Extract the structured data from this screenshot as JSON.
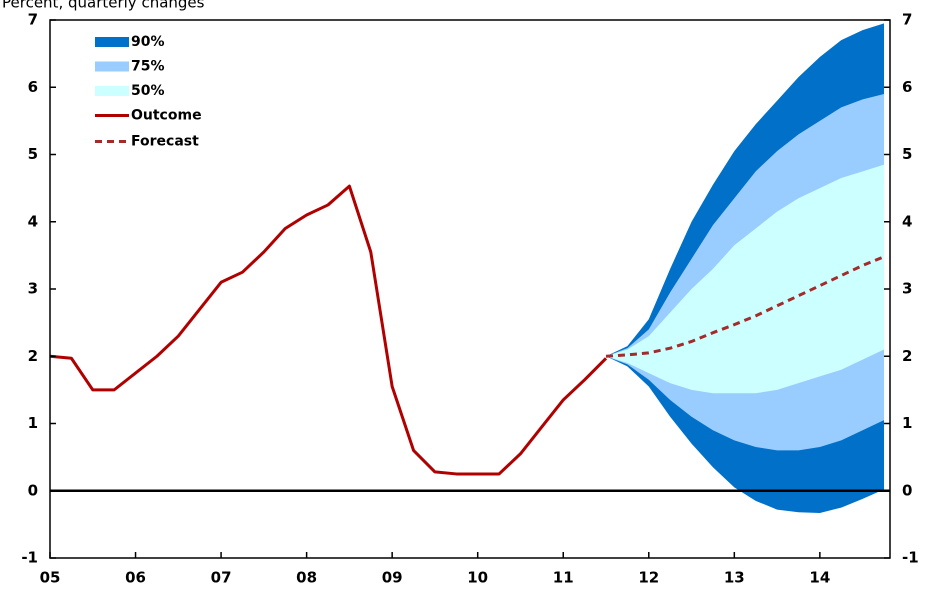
{
  "chart_data": {
    "type": "fan",
    "subtitle": "Percent, quarterly changes",
    "xlim": [
      2005,
      2014.82
    ],
    "xticks": [
      {
        "value": 2005,
        "label": "05"
      },
      {
        "value": 2006,
        "label": "06"
      },
      {
        "value": 2007,
        "label": "07"
      },
      {
        "value": 2008,
        "label": "08"
      },
      {
        "value": 2009,
        "label": "09"
      },
      {
        "value": 2010,
        "label": "10"
      },
      {
        "value": 2011,
        "label": "11"
      },
      {
        "value": 2012,
        "label": "12"
      },
      {
        "value": 2013,
        "label": "13"
      },
      {
        "value": 2014,
        "label": "14"
      }
    ],
    "ylim": [
      -1,
      7
    ],
    "yticks": [
      -1,
      0,
      1,
      2,
      3,
      4,
      5,
      6,
      7
    ],
    "y2lim": [
      -1,
      7
    ],
    "y2ticks": [
      -1,
      0,
      1,
      2,
      3,
      4,
      5,
      6,
      7
    ],
    "legend": "upper left",
    "bands": {
      "x": [
        2011.5,
        2011.75,
        2012,
        2012.25,
        2012.5,
        2012.75,
        2013,
        2013.25,
        2013.5,
        2013.75,
        2014,
        2014.25,
        2014.5,
        2014.75
      ],
      "items": [
        {
          "name": "90%",
          "color": "#0070c8",
          "upper": [
            2.0,
            2.15,
            2.55,
            3.3,
            4.0,
            4.55,
            5.05,
            5.45,
            5.8,
            6.15,
            6.45,
            6.7,
            6.85,
            6.95
          ],
          "lower": [
            2.0,
            1.85,
            1.55,
            1.1,
            0.7,
            0.35,
            0.05,
            -0.15,
            -0.28,
            -0.32,
            -0.33,
            -0.25,
            -0.12,
            0.02
          ]
        },
        {
          "name": "75%",
          "color": "#99ccff",
          "upper": [
            2.0,
            2.12,
            2.4,
            2.95,
            3.45,
            3.95,
            4.35,
            4.75,
            5.05,
            5.3,
            5.5,
            5.7,
            5.82,
            5.9
          ],
          "lower": [
            2.0,
            1.88,
            1.65,
            1.35,
            1.1,
            0.9,
            0.75,
            0.65,
            0.6,
            0.6,
            0.65,
            0.75,
            0.9,
            1.05
          ]
        },
        {
          "name": "50%",
          "color": "#ccffff",
          "upper": [
            2.0,
            2.1,
            2.3,
            2.65,
            3.0,
            3.3,
            3.65,
            3.9,
            4.15,
            4.35,
            4.5,
            4.65,
            4.75,
            4.85
          ],
          "lower": [
            2.0,
            1.9,
            1.75,
            1.6,
            1.5,
            1.45,
            1.45,
            1.45,
            1.5,
            1.6,
            1.7,
            1.8,
            1.95,
            2.1
          ]
        }
      ]
    },
    "series": [
      {
        "name": "Outcome",
        "color": "#b00000",
        "dashed": false,
        "x": [
          2005,
          2005.25,
          2005.5,
          2005.75,
          2006,
          2006.25,
          2006.5,
          2006.75,
          2007,
          2007.25,
          2007.5,
          2007.75,
          2008,
          2008.25,
          2008.5,
          2008.75,
          2009,
          2009.25,
          2009.5,
          2009.75,
          2010,
          2010.25,
          2010.5,
          2010.75,
          2011,
          2011.25,
          2011.5
        ],
        "values": [
          2.0,
          1.97,
          1.5,
          1.5,
          1.75,
          2.0,
          2.3,
          2.7,
          3.1,
          3.25,
          3.55,
          3.9,
          4.1,
          4.25,
          4.53,
          3.55,
          1.55,
          0.6,
          0.28,
          0.25,
          0.25,
          0.25,
          0.55,
          0.95,
          1.35,
          1.65,
          1.97
        ]
      },
      {
        "name": "Forecast",
        "color": "#a52a2a",
        "dashed": true,
        "x": [
          2011.5,
          2011.75,
          2012,
          2012.25,
          2012.5,
          2012.75,
          2013,
          2013.25,
          2013.5,
          2013.75,
          2014,
          2014.25,
          2014.5,
          2014.75
        ],
        "values": [
          2.0,
          2.02,
          2.05,
          2.12,
          2.22,
          2.35,
          2.47,
          2.6,
          2.75,
          2.9,
          3.05,
          3.2,
          3.35,
          3.48
        ]
      }
    ]
  }
}
